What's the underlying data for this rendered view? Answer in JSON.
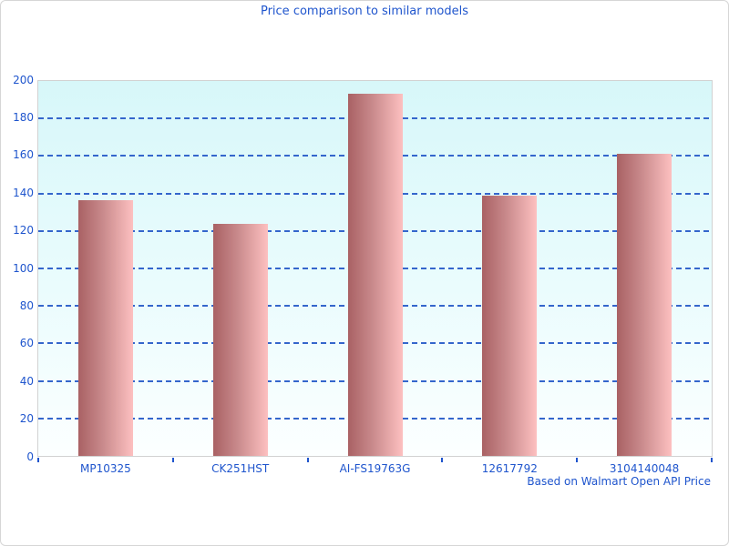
{
  "chart_data": {
    "type": "bar",
    "title": "Price comparison to similar models",
    "footnote": "Based on Walmart Open API Price",
    "categories": [
      "MP10325",
      "CK251HST",
      "AI-FS19763G",
      "12617792",
      "3104140048"
    ],
    "values": [
      136.5,
      124,
      193,
      139,
      161
    ],
    "xlabel": "",
    "ylabel": "",
    "ylim": [
      0,
      200
    ],
    "ytick_step": 20,
    "ytick_labels": [
      "0",
      "20",
      "40",
      "60",
      "80",
      "100",
      "120",
      "140",
      "160",
      "180",
      "200"
    ],
    "grid": "horizontal-dashed",
    "legend": "none",
    "colors": {
      "text": "#1f55cd",
      "gridline": "#3466cc",
      "tick": "#1f55cd",
      "plot_border": "#d2d2d2",
      "plot_bg_top": "#d7f7f9",
      "plot_bg_bottom": "#fcffff",
      "bar_gradient_left": "#a96164",
      "bar_gradient_right": "#fdc0c0",
      "page_border": "#d6d6d6"
    }
  }
}
